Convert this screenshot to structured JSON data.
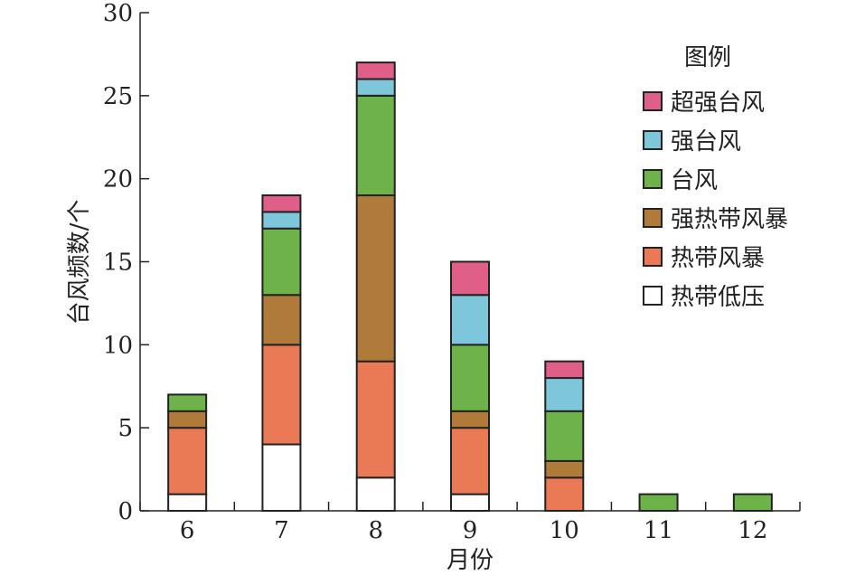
{
  "chart_data": {
    "type": "bar",
    "stacked": true,
    "categories": [
      "6",
      "7",
      "8",
      "9",
      "10",
      "11",
      "12"
    ],
    "xlabel": "月份",
    "ylabel": "台风频数/个",
    "ylim": [
      0,
      30
    ],
    "yticks": [
      0,
      5,
      10,
      15,
      20,
      25,
      30
    ],
    "legend": {
      "title": "图例",
      "placement": "right"
    },
    "series": [
      {
        "name": "热带低压",
        "color": "#ffffff",
        "values": [
          1,
          4,
          2,
          1,
          0,
          0,
          0
        ]
      },
      {
        "name": "热带风暴",
        "color": "#e97a55",
        "values": [
          4,
          6,
          7,
          4,
          2,
          0,
          0
        ]
      },
      {
        "name": "强热带风暴",
        "color": "#b07a3b",
        "values": [
          1,
          3,
          10,
          1,
          1,
          0,
          0
        ]
      },
      {
        "name": "台风",
        "color": "#6db349",
        "values": [
          1,
          4,
          6,
          4,
          3,
          1,
          1
        ]
      },
      {
        "name": "强台风",
        "color": "#7ec6d9",
        "values": [
          0,
          1,
          1,
          3,
          2,
          0,
          0
        ]
      },
      {
        "name": "超强台风",
        "color": "#df5f88",
        "values": [
          0,
          1,
          1,
          2,
          1,
          0,
          0
        ]
      }
    ]
  }
}
